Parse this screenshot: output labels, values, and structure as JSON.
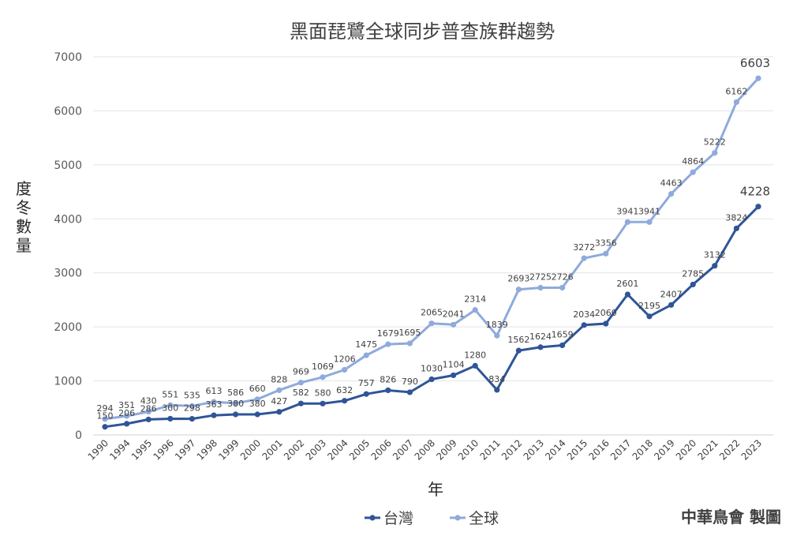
{
  "chart_data": {
    "type": "line",
    "title": "黑面琵鷺全球同步普查族群趨勢",
    "xlabel": "年",
    "ylabel": "度冬數量",
    "ylim": [
      0,
      7000
    ],
    "yticks": [
      0,
      1000,
      2000,
      3000,
      4000,
      5000,
      6000,
      7000
    ],
    "grid": true,
    "legend_position": "bottom",
    "x": [
      "1990",
      "1994",
      "1995",
      "1996",
      "1997",
      "1998",
      "1999",
      "2000",
      "2001",
      "2002",
      "2003",
      "2004",
      "2005",
      "2006",
      "2007",
      "2008",
      "2009",
      "2010",
      "2011",
      "2012",
      "2013",
      "2014",
      "2015",
      "2016",
      "2017",
      "2018",
      "2019",
      "2020",
      "2021",
      "2022",
      "2023"
    ],
    "series": [
      {
        "name": "台灣",
        "color": "#2f5597",
        "values": [
          150,
          206,
          286,
          300,
          298,
          363,
          380,
          380,
          427,
          582,
          580,
          632,
          757,
          826,
          790,
          1030,
          1104,
          1280,
          834,
          1562,
          1624,
          1659,
          2034,
          2060,
          2601,
          2195,
          2407,
          2785,
          3132,
          3824,
          4228
        ]
      },
      {
        "name": "全球",
        "color": "#8faadc",
        "values": [
          294,
          351,
          430,
          551,
          535,
          613,
          586,
          660,
          828,
          969,
          1069,
          1206,
          1475,
          1679,
          1695,
          2065,
          2041,
          2314,
          1839,
          2693,
          2725,
          2726,
          3272,
          3356,
          3941,
          3941,
          4463,
          4864,
          5222,
          6162,
          6603
        ]
      }
    ]
  },
  "credit": "中華鳥會 製圖"
}
